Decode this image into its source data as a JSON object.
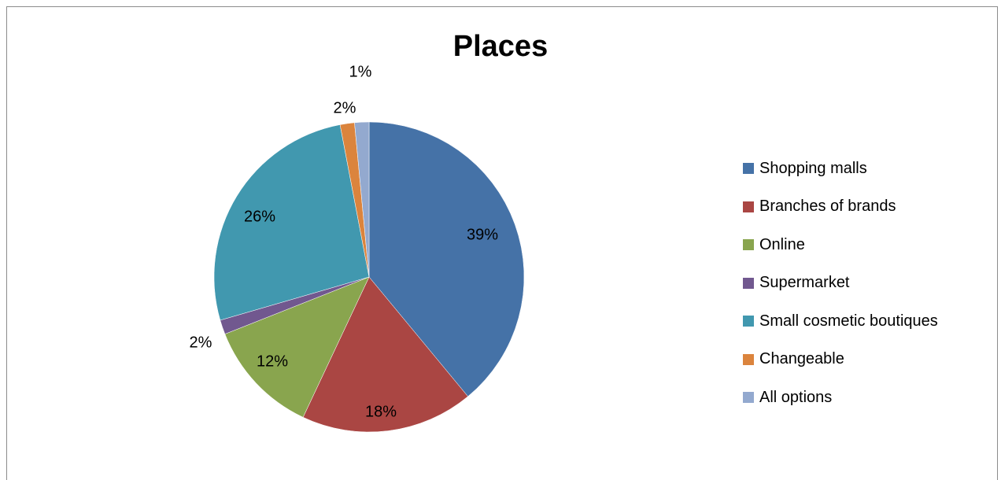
{
  "chart_data": {
    "type": "pie",
    "title": "Places",
    "series": [
      {
        "values": [
          39,
          18,
          12,
          2,
          26,
          2,
          1
        ]
      }
    ],
    "categories": [
      "Shopping malls",
      "Branches of brands",
      "Online",
      "Supermarket",
      "Small cosmetic boutiques",
      "Changeable",
      "All options"
    ],
    "slices": [
      {
        "label": "Shopping malls",
        "value": 39,
        "display": "39%",
        "color": "#4572A7"
      },
      {
        "label": "Branches of brands",
        "value": 18,
        "display": "18%",
        "color": "#AA4643"
      },
      {
        "label": "Online",
        "value": 12,
        "display": "12%",
        "color": "#89A54E"
      },
      {
        "label": "Supermarket",
        "value": 1.5,
        "display": "2%",
        "color": "#71588F"
      },
      {
        "label": "Small cosmetic boutiques",
        "value": 26.5,
        "display": "26%",
        "color": "#4198AF"
      },
      {
        "label": "Changeable",
        "value": 1.5,
        "display": "2%",
        "color": "#DB843D"
      },
      {
        "label": "All options",
        "value": 1.5,
        "display": "1%",
        "color": "#93A9CF"
      }
    ],
    "legend_position": "right"
  }
}
